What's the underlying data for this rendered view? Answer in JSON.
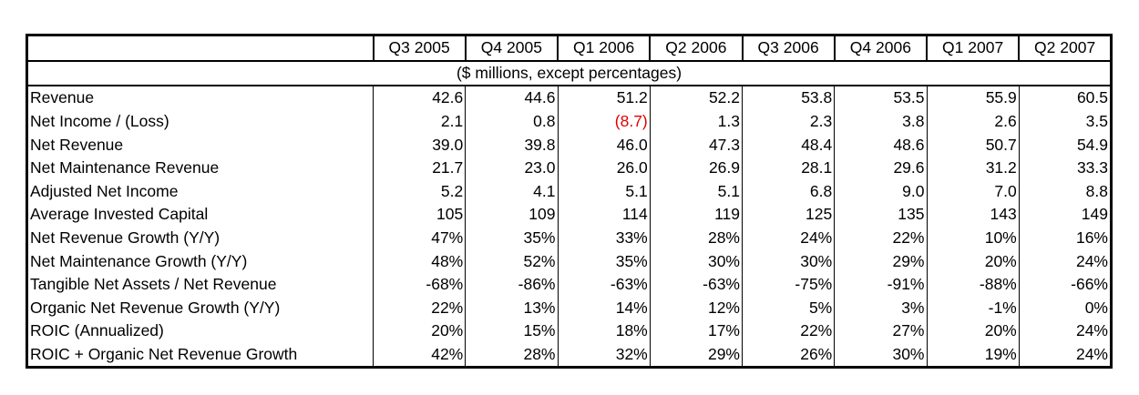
{
  "table": {
    "columns": [
      "Q3 2005",
      "Q4 2005",
      "Q1 2006",
      "Q2 2006",
      "Q3 2006",
      "Q4 2006",
      "Q1 2007",
      "Q2 2007"
    ],
    "units_note": "($ millions, except percentages)",
    "negative_color": "#e00000",
    "rows": [
      {
        "label": "Revenue",
        "values": [
          "42.6",
          "44.6",
          "51.2",
          "52.2",
          "53.8",
          "53.5",
          "55.9",
          "60.5"
        ]
      },
      {
        "label": "Net Income / (Loss)",
        "values": [
          "2.1",
          "0.8",
          "(8.7)",
          "1.3",
          "2.3",
          "3.8",
          "2.6",
          "3.5"
        ]
      },
      {
        "label": "Net Revenue",
        "values": [
          "39.0",
          "39.8",
          "46.0",
          "47.3",
          "48.4",
          "48.6",
          "50.7",
          "54.9"
        ]
      },
      {
        "label": "Net Maintenance Revenue",
        "values": [
          "21.7",
          "23.0",
          "26.0",
          "26.9",
          "28.1",
          "29.6",
          "31.2",
          "33.3"
        ]
      },
      {
        "label": "Adjusted Net Income",
        "values": [
          "5.2",
          "4.1",
          "5.1",
          "5.1",
          "6.8",
          "9.0",
          "7.0",
          "8.8"
        ]
      },
      {
        "label": "Average Invested Capital",
        "values": [
          "105",
          "109",
          "114",
          "119",
          "125",
          "135",
          "143",
          "149"
        ]
      },
      {
        "label": "Net Revenue Growth (Y/Y)",
        "values": [
          "47%",
          "35%",
          "33%",
          "28%",
          "24%",
          "22%",
          "10%",
          "16%"
        ]
      },
      {
        "label": "Net Maintenance Growth (Y/Y)",
        "values": [
          "48%",
          "52%",
          "35%",
          "30%",
          "30%",
          "29%",
          "20%",
          "24%"
        ]
      },
      {
        "label": "Tangible Net Assets / Net Revenue",
        "values": [
          "-68%",
          "-86%",
          "-63%",
          "-63%",
          "-75%",
          "-91%",
          "-88%",
          "-66%"
        ]
      },
      {
        "label": "Organic Net Revenue Growth (Y/Y)",
        "values": [
          "22%",
          "13%",
          "14%",
          "12%",
          "5%",
          "3%",
          "-1%",
          "0%"
        ]
      },
      {
        "label": "ROIC (Annualized)",
        "values": [
          "20%",
          "15%",
          "18%",
          "17%",
          "22%",
          "27%",
          "20%",
          "24%"
        ]
      },
      {
        "label": "ROIC + Organic Net Revenue Growth",
        "values": [
          "42%",
          "28%",
          "32%",
          "29%",
          "26%",
          "30%",
          "19%",
          "24%"
        ]
      }
    ]
  }
}
